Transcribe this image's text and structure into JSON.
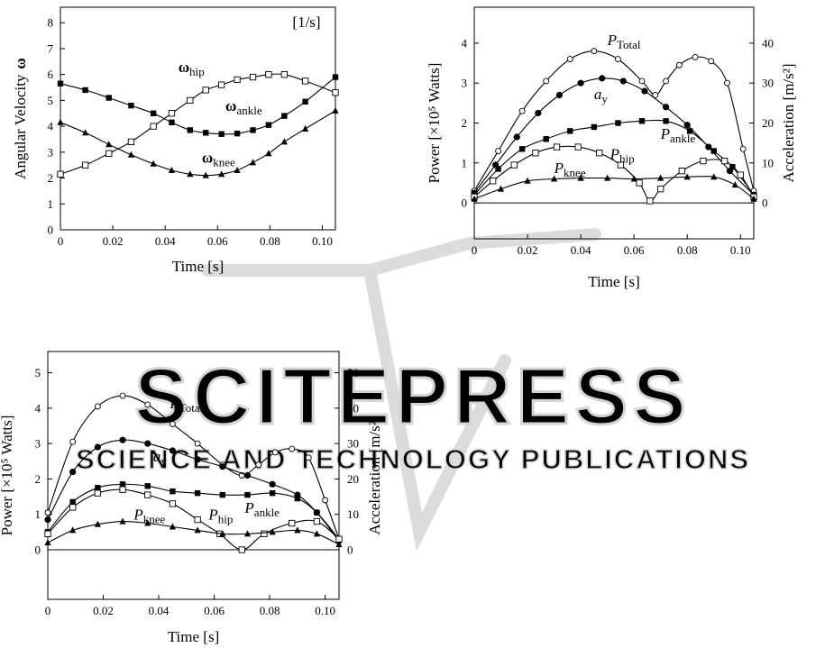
{
  "watermark": {
    "main": "SCITEPRESS",
    "sub": "SCIENCE AND TECHNOLOGY PUBLICATIONS"
  },
  "chart_data": [
    {
      "id": "chart1",
      "type": "line",
      "xlabel": "Time [s]",
      "ylabel": "Angular Velocity",
      "ylabel_symbol": "ω",
      "yunit": "[1/s]",
      "xlim": [
        0,
        0.105
      ],
      "ylim": [
        0,
        8.6
      ],
      "xticks": [
        0,
        0.02,
        0.04,
        0.06,
        0.08,
        0.1
      ],
      "xtick_labels": [
        "0",
        "0.02",
        "0.04",
        "0.06",
        "0.08",
        "0.10"
      ],
      "yticks": [
        0,
        1,
        2,
        3,
        4,
        5,
        6,
        7,
        8
      ],
      "ytick_labels": [
        "0",
        "1",
        "2",
        "3",
        "4",
        "5",
        "6",
        "7",
        "8"
      ],
      "series": [
        {
          "name": "ω",
          "sub": "hip",
          "marker": "square-open",
          "x": [
            0,
            0.0095,
            0.0185,
            0.027,
            0.0355,
            0.0425,
            0.0495,
            0.0555,
            0.0615,
            0.0675,
            0.0735,
            0.0795,
            0.0855,
            0.0935,
            0.105
          ],
          "y": [
            2.15,
            2.5,
            2.95,
            3.4,
            4.0,
            4.5,
            5.0,
            5.4,
            5.6,
            5.8,
            5.9,
            6.0,
            6.0,
            5.75,
            5.3
          ],
          "label_at": [
            0.045,
            6.1
          ]
        },
        {
          "name": "ω",
          "sub": "ankle",
          "marker": "square-filled",
          "x": [
            0,
            0.0095,
            0.0185,
            0.027,
            0.0355,
            0.0425,
            0.0495,
            0.0555,
            0.0615,
            0.0675,
            0.0735,
            0.0795,
            0.0855,
            0.0935,
            0.105
          ],
          "y": [
            5.65,
            5.4,
            5.1,
            4.8,
            4.5,
            4.15,
            3.85,
            3.75,
            3.7,
            3.72,
            3.85,
            4.05,
            4.4,
            4.95,
            5.9
          ],
          "label_at": [
            0.063,
            4.6
          ]
        },
        {
          "name": "ω",
          "sub": "knee",
          "marker": "triangle-filled",
          "x": [
            0,
            0.0095,
            0.0185,
            0.027,
            0.0355,
            0.0425,
            0.0495,
            0.0555,
            0.0615,
            0.0675,
            0.0735,
            0.0795,
            0.0855,
            0.0935,
            0.105
          ],
          "y": [
            4.15,
            3.75,
            3.3,
            2.9,
            2.55,
            2.3,
            2.15,
            2.1,
            2.15,
            2.3,
            2.6,
            2.95,
            3.4,
            3.9,
            4.6
          ],
          "label_at": [
            0.054,
            2.6
          ]
        }
      ]
    },
    {
      "id": "chart2",
      "type": "line",
      "xlabel": "Time [s]",
      "ylabel": "Power [×10⁵ Watts]",
      "ylabel_right": "Acceleration [m/s²]",
      "xlim": [
        0,
        0.105
      ],
      "ylim": [
        -0.9,
        4.9
      ],
      "ylim_right": [
        -9,
        49
      ],
      "xticks": [
        0,
        0.02,
        0.04,
        0.06,
        0.08,
        0.1
      ],
      "xtick_labels": [
        "0",
        "0.02",
        "0.04",
        "0.06",
        "0.08",
        "0.10"
      ],
      "yticks": [
        0,
        1,
        2,
        3,
        4
      ],
      "ytick_labels": [
        "0",
        "1",
        "2",
        "3",
        "4"
      ],
      "yticks_right": [
        0,
        10,
        20,
        30,
        40
      ],
      "ytick_labels_right": [
        "0",
        "10",
        "20",
        "30",
        "40"
      ],
      "series": [
        {
          "name": "P",
          "sub": "Total",
          "italic": true,
          "marker": "circle-open",
          "x": [
            0,
            0.009,
            0.018,
            0.027,
            0.036,
            0.045,
            0.054,
            0.063,
            0.068,
            0.072,
            0.077,
            0.083,
            0.089,
            0.095,
            0.101,
            0.105
          ],
          "y": [
            0.3,
            1.3,
            2.3,
            3.05,
            3.6,
            3.8,
            3.6,
            3.05,
            2.7,
            3.05,
            3.45,
            3.65,
            3.55,
            3.0,
            1.35,
            0.3
          ],
          "label_at": [
            0.05,
            3.95
          ]
        },
        {
          "name": "a",
          "sub": "y",
          "italic": true,
          "marker": "circle-filled",
          "axis": "right",
          "x": [
            0,
            0.008,
            0.016,
            0.024,
            0.032,
            0.04,
            0.048,
            0.056,
            0.064,
            0.072,
            0.08,
            0.088,
            0.096,
            0.105
          ],
          "y": [
            2.5,
            9.5,
            16.5,
            22.5,
            27.0,
            30.0,
            31.2,
            30.5,
            28.0,
            24.0,
            19.5,
            14.0,
            8.0,
            2.0
          ],
          "label_at": [
            0.045,
            2.6
          ]
        },
        {
          "name": "P",
          "sub": "ankle",
          "italic": true,
          "marker": "square-filled",
          "x": [
            0,
            0.009,
            0.018,
            0.027,
            0.036,
            0.045,
            0.054,
            0.063,
            0.072,
            0.081,
            0.09,
            0.097,
            0.105
          ],
          "y": [
            0.2,
            0.85,
            1.35,
            1.6,
            1.8,
            1.9,
            2.0,
            2.05,
            2.05,
            1.8,
            1.3,
            0.9,
            0.2
          ],
          "label_at": [
            0.07,
            1.6
          ]
        },
        {
          "name": "P",
          "sub": "hip",
          "italic": true,
          "marker": "square-open",
          "x": [
            0,
            0.007,
            0.015,
            0.023,
            0.031,
            0.039,
            0.047,
            0.055,
            0.062,
            0.066,
            0.07,
            0.078,
            0.086,
            0.094,
            0.1,
            0.105
          ],
          "y": [
            0.15,
            0.55,
            0.95,
            1.25,
            1.4,
            1.4,
            1.25,
            0.95,
            0.5,
            0.05,
            0.35,
            0.8,
            1.05,
            1.05,
            0.7,
            0.15
          ],
          "label_at": [
            0.051,
            1.1
          ]
        },
        {
          "name": "P",
          "sub": "knee",
          "italic": true,
          "marker": "triangle-filled",
          "x": [
            0,
            0.01,
            0.02,
            0.03,
            0.04,
            0.05,
            0.06,
            0.07,
            0.08,
            0.09,
            0.098,
            0.105
          ],
          "y": [
            0.1,
            0.35,
            0.55,
            0.6,
            0.62,
            0.62,
            0.6,
            0.62,
            0.65,
            0.65,
            0.45,
            0.1
          ],
          "label_at": [
            0.03,
            0.75
          ]
        }
      ]
    },
    {
      "id": "chart3",
      "type": "line",
      "xlabel": "Time [s]",
      "ylabel": "Power [×10⁵ Watts]",
      "ylabel_right": "Acceleration [m/s²]",
      "xlim": [
        0,
        0.105
      ],
      "ylim": [
        -1.4,
        5.6
      ],
      "ylim_right": [
        -14,
        56
      ],
      "xticks": [
        0,
        0.02,
        0.04,
        0.06,
        0.08,
        0.1
      ],
      "xtick_labels": [
        "0",
        "0.02",
        "0.04",
        "0.06",
        "0.08",
        "0.10"
      ],
      "yticks": [
        0,
        1,
        2,
        3,
        4,
        5
      ],
      "ytick_labels": [
        "0",
        "1",
        "2",
        "3",
        "4",
        "5"
      ],
      "yticks_right": [
        0,
        10,
        20,
        30,
        40,
        50
      ],
      "ytick_labels_right": [
        "0",
        "10",
        "20",
        "30",
        "40",
        "50"
      ],
      "series": [
        {
          "name": "P",
          "sub": "Total",
          "italic": true,
          "marker": "circle-open",
          "x": [
            0,
            0.009,
            0.018,
            0.027,
            0.036,
            0.045,
            0.054,
            0.063,
            0.07,
            0.076,
            0.082,
            0.088,
            0.094,
            0.1,
            0.105
          ],
          "y": [
            1.05,
            3.05,
            4.05,
            4.35,
            4.1,
            3.55,
            3.0,
            2.4,
            2.1,
            2.4,
            2.75,
            2.85,
            2.6,
            1.4,
            0.3
          ],
          "label_at": [
            0.044,
            4.0
          ]
        },
        {
          "name": "a",
          "sub": "y",
          "italic": true,
          "marker": "circle-filled",
          "axis": "right",
          "x": [
            0,
            0.009,
            0.018,
            0.027,
            0.036,
            0.045,
            0.054,
            0.063,
            0.072,
            0.081,
            0.09,
            0.097,
            0.105
          ],
          "y": [
            8.5,
            22.0,
            29.0,
            31.0,
            30.0,
            28.0,
            25.5,
            23.5,
            21.0,
            18.5,
            15.5,
            10.5,
            2.5
          ],
          "label_at": [
            0.038,
            2.5
          ]
        },
        {
          "name": "P",
          "sub": "ankle",
          "italic": true,
          "marker": "square-filled",
          "x": [
            0,
            0.009,
            0.018,
            0.027,
            0.036,
            0.045,
            0.054,
            0.063,
            0.072,
            0.081,
            0.09,
            0.097,
            0.105
          ],
          "y": [
            0.5,
            1.35,
            1.75,
            1.85,
            1.8,
            1.65,
            1.6,
            1.55,
            1.55,
            1.6,
            1.45,
            1.05,
            0.3
          ],
          "label_at": [
            0.071,
            1.05
          ]
        },
        {
          "name": "P",
          "sub": "hip",
          "italic": true,
          "marker": "square-open",
          "x": [
            0,
            0.009,
            0.018,
            0.027,
            0.036,
            0.045,
            0.054,
            0.062,
            0.07,
            0.078,
            0.088,
            0.097,
            0.105
          ],
          "y": [
            0.45,
            1.2,
            1.6,
            1.7,
            1.55,
            1.3,
            0.85,
            0.45,
            0.0,
            0.45,
            0.75,
            0.8,
            0.3
          ],
          "label_at": [
            0.058,
            0.85
          ]
        },
        {
          "name": "P",
          "sub": "knee",
          "italic": true,
          "marker": "triangle-filled",
          "x": [
            0,
            0.009,
            0.018,
            0.027,
            0.036,
            0.045,
            0.054,
            0.063,
            0.072,
            0.081,
            0.09,
            0.097,
            0.105
          ],
          "y": [
            0.2,
            0.55,
            0.72,
            0.8,
            0.75,
            0.65,
            0.55,
            0.45,
            0.45,
            0.5,
            0.55,
            0.45,
            0.15
          ],
          "label_at": [
            0.031,
            0.85
          ]
        }
      ]
    }
  ]
}
